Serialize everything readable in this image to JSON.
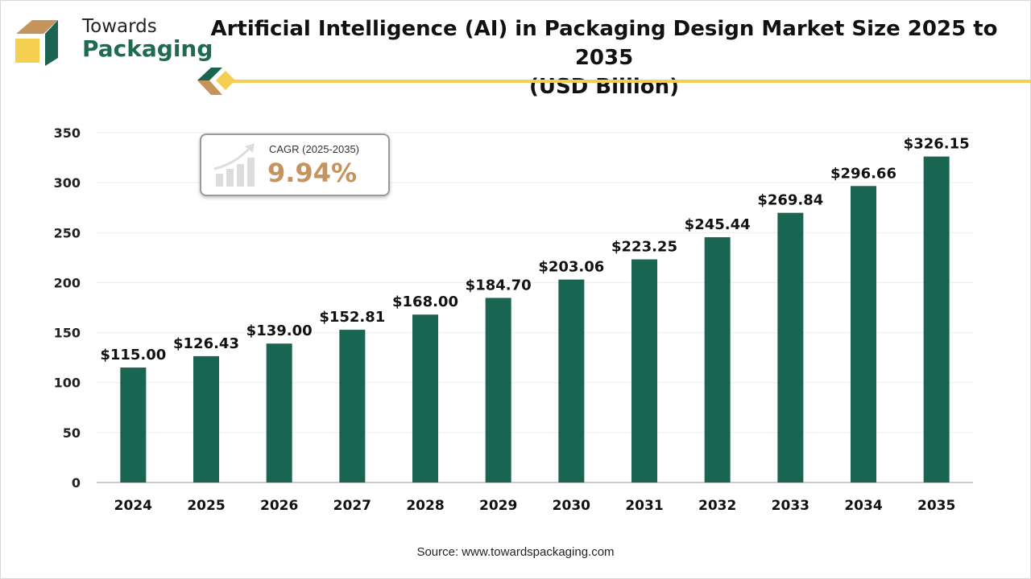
{
  "brand": {
    "line1": "Towards",
    "line2": "Packaging"
  },
  "header": {
    "title_line1": "Artificial Intelligence (AI) in Packaging Design Market Size 2025 to 2035",
    "title_line2": "(USD Billion)"
  },
  "cagr": {
    "label": "CAGR (2025-2035)",
    "value": "9.94%",
    "icon": "growth-chart-icon"
  },
  "source": "Source: www.towardspackaging.com",
  "colors": {
    "bar": "#1a6452",
    "accent": "#f5cf4f",
    "gold": "#c4945c"
  },
  "chart_data": {
    "type": "bar",
    "categories": [
      "2024",
      "2025",
      "2026",
      "2027",
      "2028",
      "2029",
      "2030",
      "2031",
      "2032",
      "2033",
      "2034",
      "2035"
    ],
    "values": [
      115.0,
      126.43,
      139.0,
      152.81,
      168.0,
      184.7,
      203.06,
      223.25,
      245.44,
      269.84,
      296.66,
      326.15
    ],
    "data_labels": [
      "$115.00",
      "$126.43",
      "$139.00",
      "$152.81",
      "$168.00",
      "$184.70",
      "$203.06",
      "$223.25",
      "$245.44",
      "$269.84",
      "$296.66",
      "$326.15"
    ],
    "yticks": [
      "0",
      "50",
      "100",
      "150",
      "200",
      "250",
      "300",
      "350"
    ],
    "ylim": [
      0,
      350
    ],
    "grid": true,
    "title": "Artificial Intelligence (AI) in Packaging Design Market Size 2025 to 2035 (USD Billion)"
  }
}
